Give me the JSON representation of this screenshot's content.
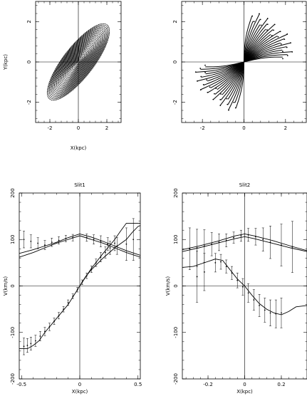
{
  "chart_data": [
    {
      "id": "orbits-left",
      "type": "line",
      "title": "",
      "xlabel": "X(kpc)",
      "ylabel": "Y(kpc)",
      "xlim": [
        -3,
        3
      ],
      "ylim": [
        -3,
        3
      ],
      "xticks": [
        -2,
        0,
        2
      ],
      "yticks": [
        -2,
        0,
        2
      ],
      "x_tick_labels": [
        "-2",
        "0",
        "2"
      ],
      "y_tick_labels": [
        "-2",
        "0",
        "2"
      ],
      "ellipses": {
        "count": 30,
        "max_semi_major": 2.75,
        "max_semi_minor": 0.9,
        "position_angle_deg": 40
      }
    },
    {
      "id": "orbits-right",
      "type": "line",
      "title": "",
      "xlabel": "",
      "ylabel": "",
      "xlim": [
        -3,
        3
      ],
      "ylim": [
        -3,
        3
      ],
      "xticks": [
        -2,
        0,
        2
      ],
      "yticks": [
        -2,
        0,
        2
      ],
      "x_tick_labels": [
        "-2",
        "0",
        "2"
      ],
      "y_tick_labels": [
        "-2",
        "0",
        "2"
      ],
      "spokes": {
        "count": 22,
        "radius": 2.5,
        "angle_range_deg": [
          5,
          80
        ]
      }
    },
    {
      "id": "slit1",
      "type": "line",
      "title": "Slit1",
      "xlabel": "X(kpc)",
      "ylabel": "V(km/s)",
      "xlim": [
        -0.52,
        0.52
      ],
      "ylim": [
        -200,
        200
      ],
      "xticks": [
        -0.5,
        0,
        0.5
      ],
      "yticks": [
        -200,
        -100,
        0,
        100,
        200
      ],
      "x_tick_labels": [
        "-0.5",
        "0",
        "0.5"
      ],
      "y_tick_labels": [
        "-200",
        "-100",
        "0",
        "100",
        "200"
      ],
      "series": [
        {
          "x": [
            -0.52,
            -0.4,
            -0.3,
            -0.2,
            -0.1,
            0,
            0.1,
            0.2,
            0.3,
            0.4,
            0.52
          ],
          "values": [
            70,
            78,
            86,
            94,
            104,
            112,
            105,
            96,
            86,
            76,
            66
          ]
        },
        {
          "x": [
            -0.52,
            -0.4,
            -0.3,
            -0.2,
            -0.1,
            0,
            0.1,
            0.2,
            0.3,
            0.4,
            0.52
          ],
          "values": [
            62,
            72,
            82,
            92,
            100,
            108,
            100,
            92,
            82,
            72,
            62
          ]
        },
        {
          "x": [
            -0.52,
            -0.45,
            -0.4,
            -0.35,
            -0.3,
            -0.2,
            -0.1,
            0,
            0.1,
            0.2,
            0.3,
            0.35,
            0.4,
            0.45,
            0.5,
            0.52
          ],
          "values": [
            -135,
            -135,
            -128,
            -118,
            -100,
            -70,
            -40,
            0,
            38,
            70,
            100,
            118,
            135,
            135,
            135,
            135
          ]
        },
        {
          "x": [
            0,
            0.05,
            0.1,
            0.2,
            0.3,
            0.4,
            0.45,
            0.5,
            0.52
          ],
          "values": [
            0,
            20,
            35,
            60,
            82,
            100,
            115,
            128,
            130
          ]
        }
      ],
      "points": [
        {
          "x": -0.48,
          "y": -130,
          "err": 18
        },
        {
          "x": -0.45,
          "y": -128,
          "err": 15
        },
        {
          "x": -0.42,
          "y": -124,
          "err": 14
        },
        {
          "x": -0.38,
          "y": -118,
          "err": 12
        },
        {
          "x": -0.34,
          "y": -108,
          "err": 10
        },
        {
          "x": -0.3,
          "y": -98,
          "err": 9
        },
        {
          "x": -0.26,
          "y": -88,
          "err": 8
        },
        {
          "x": -0.22,
          "y": -76,
          "err": 7
        },
        {
          "x": -0.18,
          "y": -64,
          "err": 7
        },
        {
          "x": -0.14,
          "y": -50,
          "err": 6
        },
        {
          "x": -0.1,
          "y": -36,
          "err": 6
        },
        {
          "x": -0.06,
          "y": -22,
          "err": 5
        },
        {
          "x": -0.02,
          "y": -8,
          "err": 5
        },
        {
          "x": 0.02,
          "y": 8,
          "err": 5
        },
        {
          "x": 0.06,
          "y": 22,
          "err": 6
        },
        {
          "x": 0.1,
          "y": 36,
          "err": 7
        },
        {
          "x": 0.14,
          "y": 50,
          "err": 8
        },
        {
          "x": 0.18,
          "y": 62,
          "err": 10
        },
        {
          "x": 0.22,
          "y": 72,
          "err": 12
        },
        {
          "x": 0.26,
          "y": 82,
          "err": 14
        },
        {
          "x": 0.3,
          "y": 92,
          "err": 16
        },
        {
          "x": -0.48,
          "y": 100,
          "err": 18
        },
        {
          "x": -0.42,
          "y": 96,
          "err": 14
        },
        {
          "x": -0.36,
          "y": 92,
          "err": 12
        },
        {
          "x": -0.3,
          "y": 88,
          "err": 10
        },
        {
          "x": -0.24,
          "y": 94,
          "err": 9
        },
        {
          "x": -0.18,
          "y": 98,
          "err": 8
        },
        {
          "x": -0.12,
          "y": 102,
          "err": 7
        },
        {
          "x": -0.06,
          "y": 104,
          "err": 7
        },
        {
          "x": 0.06,
          "y": 104,
          "err": 8
        },
        {
          "x": 0.12,
          "y": 100,
          "err": 10
        },
        {
          "x": 0.18,
          "y": 96,
          "err": 12
        },
        {
          "x": 0.24,
          "y": 90,
          "err": 14
        },
        {
          "x": 0.32,
          "y": 86,
          "err": 18
        },
        {
          "x": 0.4,
          "y": 90,
          "err": 35
        },
        {
          "x": 0.46,
          "y": 100,
          "err": 45
        }
      ]
    },
    {
      "id": "slit2",
      "type": "line",
      "title": "Slit2",
      "xlabel": "X(kpc)",
      "ylabel": "V(km/s)",
      "xlim": [
        -0.34,
        0.34
      ],
      "ylim": [
        -200,
        200
      ],
      "xticks": [
        -0.2,
        0,
        0.2
      ],
      "yticks": [
        -200,
        -100,
        0,
        100,
        200
      ],
      "x_tick_labels": [
        "-0.2",
        "0",
        "0.2"
      ],
      "y_tick_labels": [
        "-200",
        "-100",
        "0",
        "100",
        "200"
      ],
      "series": [
        {
          "x": [
            -0.34,
            -0.25,
            -0.15,
            -0.05,
            0,
            0.05,
            0.15,
            0.25,
            0.34
          ],
          "values": [
            78,
            86,
            96,
            108,
            112,
            108,
            98,
            86,
            76
          ]
        },
        {
          "x": [
            -0.34,
            -0.25,
            -0.15,
            -0.05,
            0,
            0.05,
            0.15,
            0.25,
            0.34
          ],
          "values": [
            74,
            82,
            92,
            102,
            106,
            102,
            92,
            82,
            74
          ]
        },
        {
          "x": [
            -0.34,
            -0.28,
            -0.22,
            -0.16,
            -0.12,
            -0.08,
            -0.04,
            0,
            0.04,
            0.08,
            0.12,
            0.16,
            0.2,
            0.24,
            0.28,
            0.34
          ],
          "values": [
            40,
            42,
            50,
            58,
            55,
            35,
            15,
            0,
            -20,
            -38,
            -50,
            -58,
            -62,
            -55,
            -45,
            -42
          ]
        }
      ],
      "points": [
        {
          "x": -0.3,
          "y": 80,
          "err": 45
        },
        {
          "x": -0.26,
          "y": 82,
          "err": 40
        },
        {
          "x": -0.22,
          "y": 86,
          "err": 35
        },
        {
          "x": -0.18,
          "y": 90,
          "err": 25
        },
        {
          "x": -0.14,
          "y": 94,
          "err": 18
        },
        {
          "x": -0.1,
          "y": 98,
          "err": 14
        },
        {
          "x": -0.06,
          "y": 104,
          "err": 12
        },
        {
          "x": -0.02,
          "y": 108,
          "err": 12
        },
        {
          "x": 0.02,
          "y": 110,
          "err": 14
        },
        {
          "x": 0.06,
          "y": 106,
          "err": 18
        },
        {
          "x": 0.1,
          "y": 100,
          "err": 25
        },
        {
          "x": 0.14,
          "y": 94,
          "err": 35
        },
        {
          "x": 0.2,
          "y": 88,
          "err": 45
        },
        {
          "x": 0.26,
          "y": 84,
          "err": 55
        },
        {
          "x": -0.16,
          "y": 50,
          "err": 20
        },
        {
          "x": -0.13,
          "y": 52,
          "err": 16
        },
        {
          "x": -0.1,
          "y": 42,
          "err": 14
        },
        {
          "x": -0.07,
          "y": 28,
          "err": 14
        },
        {
          "x": -0.04,
          "y": 12,
          "err": 16
        },
        {
          "x": -0.01,
          "y": -2,
          "err": 18
        },
        {
          "x": 0.02,
          "y": -15,
          "err": 20
        },
        {
          "x": 0.05,
          "y": -30,
          "err": 22
        },
        {
          "x": 0.08,
          "y": -42,
          "err": 24
        },
        {
          "x": 0.11,
          "y": -52,
          "err": 26
        },
        {
          "x": 0.14,
          "y": -58,
          "err": 28
        },
        {
          "x": 0.17,
          "y": -60,
          "err": 30
        },
        {
          "x": 0.2,
          "y": -58,
          "err": 32
        },
        {
          "x": -0.22,
          "y": 30,
          "err": 40
        },
        {
          "x": -0.26,
          "y": 20,
          "err": 55
        }
      ]
    }
  ]
}
